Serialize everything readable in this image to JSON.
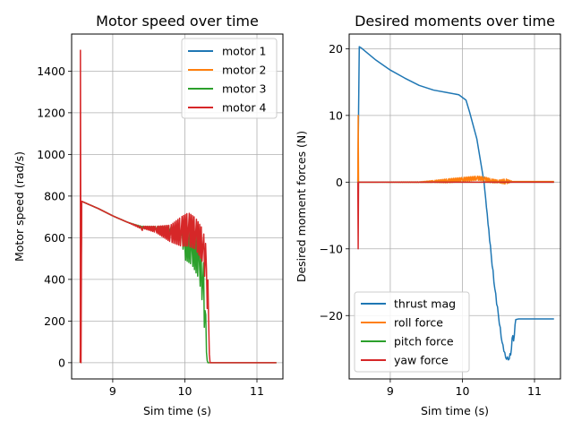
{
  "chart_data": [
    {
      "type": "line",
      "title": "Motor speed over time",
      "xlabel": "Sim time (s)",
      "ylabel": "Motor speed (rad/s)",
      "xlim": [
        8.43,
        11.36
      ],
      "ylim": [
        -78,
        1578
      ],
      "xticks": [
        9,
        10,
        11
      ],
      "yticks": [
        0,
        200,
        400,
        600,
        800,
        1000,
        1200,
        1400
      ],
      "grid": true,
      "legend": "top-right",
      "series": [
        {
          "name": "motor 1",
          "color": "#1f77b4",
          "x": [
            8.55,
            8.57,
            8.6,
            8.8,
            9.0,
            9.2,
            9.4,
            9.6,
            9.7
          ],
          "y": [
            0,
            775,
            770,
            740,
            705,
            675,
            650,
            645,
            650
          ]
        },
        {
          "name": "motor 2",
          "color": "#ff7f0e",
          "x": [
            8.55,
            8.57,
            8.6,
            8.8,
            9.0,
            9.2,
            9.4,
            9.6,
            9.7
          ],
          "y": [
            0,
            775,
            770,
            740,
            705,
            675,
            650,
            645,
            650
          ]
        },
        {
          "name": "motor 3",
          "color": "#2ca02c",
          "x": [
            8.55,
            8.56,
            8.6,
            8.8,
            9.0,
            9.2,
            9.4,
            9.6,
            9.8,
            9.95,
            10.0,
            10.1,
            10.2,
            10.25,
            10.28,
            10.3,
            10.32,
            11.27
          ],
          "y": [
            0,
            775,
            770,
            740,
            705,
            675,
            650,
            645,
            640,
            620,
            555,
            550,
            500,
            400,
            250,
            50,
            0,
            0
          ],
          "osc": [
            0,
            0,
            0,
            0,
            0,
            0,
            5,
            10,
            15,
            25,
            60,
            80,
            100,
            130,
            130,
            30,
            0,
            0
          ]
        },
        {
          "name": "motor 4",
          "color": "#d62728",
          "x": [
            8.55,
            8.552,
            8.56,
            8.57,
            8.6,
            8.8,
            9.0,
            9.2,
            9.38,
            9.4,
            9.42,
            9.6,
            9.8,
            9.95,
            10.05,
            10.15,
            10.25,
            10.3,
            10.33,
            10.35,
            11.27
          ],
          "y": [
            0,
            1500,
            0,
            775,
            770,
            740,
            705,
            675,
            650,
            640,
            650,
            640,
            620,
            630,
            640,
            620,
            560,
            450,
            200,
            0,
            0
          ],
          "osc": [
            0,
            0,
            0,
            0,
            0,
            0,
            0,
            0,
            5,
            15,
            5,
            15,
            40,
            70,
            80,
            75,
            80,
            100,
            120,
            0,
            0
          ]
        }
      ]
    },
    {
      "type": "line",
      "title": "Desired moments over time",
      "xlabel": "Sim time (s)",
      "ylabel": "Desired moment forces (N)",
      "xlim": [
        8.43,
        11.36
      ],
      "ylim": [
        -29.5,
        22.2
      ],
      "xticks": [
        9,
        10,
        11
      ],
      "yticks": [
        -20,
        -10,
        0,
        10,
        20
      ],
      "grid": true,
      "legend": "bottom-left",
      "series": [
        {
          "name": "thrust mag",
          "color": "#1f77b4",
          "x": [
            8.55,
            8.57,
            8.6,
            8.8,
            9.0,
            9.2,
            9.4,
            9.6,
            9.8,
            9.95,
            10.05,
            10.1,
            10.15,
            10.2,
            10.3,
            10.4,
            10.45,
            10.5,
            10.55,
            10.6,
            10.65,
            10.68,
            10.7,
            10.72,
            10.74,
            10.78,
            11.27
          ],
          "y": [
            0,
            20.3,
            20.1,
            18.3,
            16.8,
            15.6,
            14.5,
            13.8,
            13.4,
            13.1,
            12.3,
            10.5,
            8.5,
            6.5,
            0,
            -11,
            -16,
            -20,
            -24,
            -26.3,
            -26.5,
            -25,
            -23,
            -23,
            -20.6,
            -20.5,
            -20.5
          ],
          "osc": [
            0,
            0,
            0,
            0,
            0,
            0,
            0,
            0,
            0,
            0,
            0,
            0,
            0,
            0,
            0,
            0.3,
            0.3,
            0.3,
            0.2,
            0.2,
            0.2,
            0.5,
            0.8,
            0.8,
            0,
            0,
            0
          ]
        },
        {
          "name": "roll force",
          "color": "#ff7f0e",
          "x": [
            8.55,
            8.555,
            8.56,
            8.57,
            8.6,
            9.4,
            9.6,
            9.8,
            10.0,
            10.2,
            10.3,
            10.4,
            10.5,
            10.6,
            10.7,
            11.27
          ],
          "y": [
            0,
            10,
            0,
            0,
            0,
            0,
            0.1,
            0.2,
            0.4,
            0.6,
            0.5,
            0.2,
            0.1,
            0.1,
            0.1,
            0.1
          ],
          "osc": [
            0,
            0,
            0,
            0,
            0,
            0.05,
            0.15,
            0.3,
            0.3,
            0.3,
            0.3,
            0.3,
            0.2,
            0.4,
            0,
            0
          ]
        },
        {
          "name": "pitch force",
          "color": "#2ca02c",
          "x": [
            8.55,
            8.56,
            11.27
          ],
          "y": [
            0,
            0,
            0
          ]
        },
        {
          "name": "yaw force",
          "color": "#d62728",
          "x": [
            8.55,
            8.555,
            8.56,
            8.57,
            11.27
          ],
          "y": [
            0,
            -10,
            0,
            0,
            0
          ]
        }
      ]
    }
  ]
}
